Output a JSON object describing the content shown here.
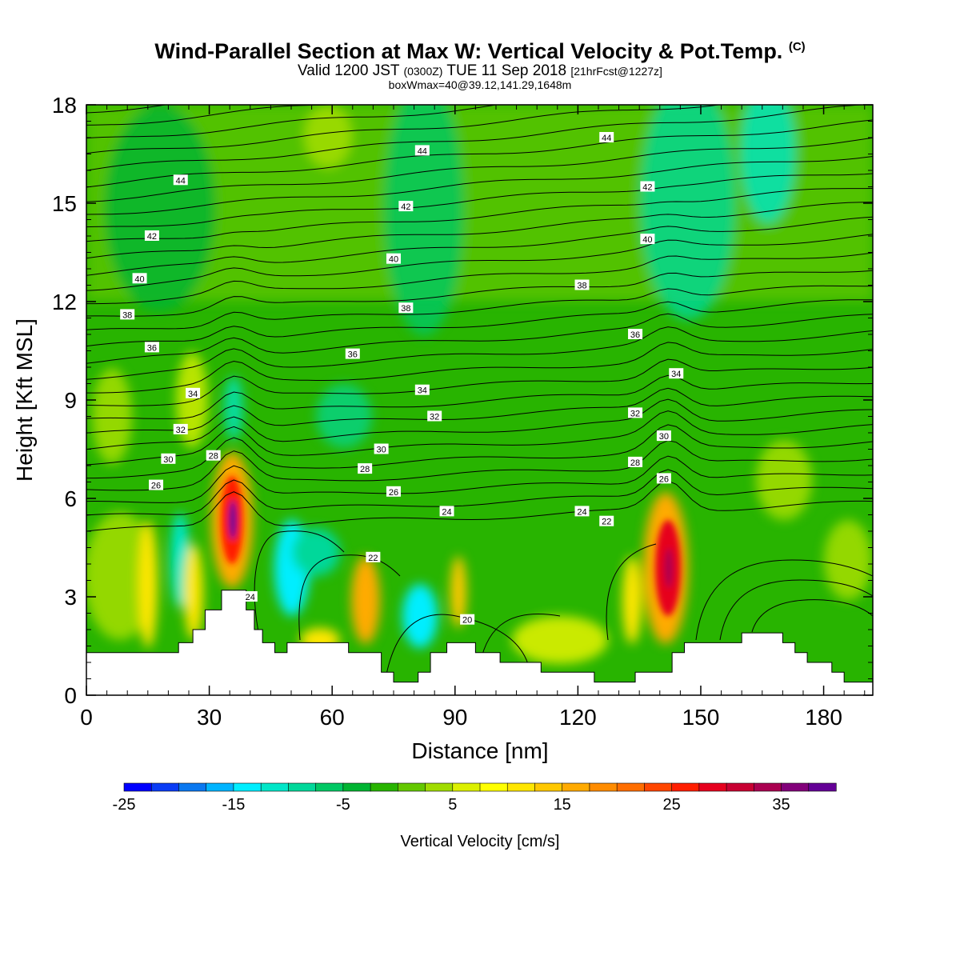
{
  "header": {
    "title": "Wind-Parallel Section at Max W: Vertical Velocity & Pot.Temp.",
    "copyright": "(C)",
    "subtitle_main": "Valid 1200 JST",
    "subtitle_utc": "(0300Z)",
    "subtitle_date": "TUE 11 Sep 2018",
    "subtitle_fcst": "[21hrFcst@1227z]",
    "subtitle2": "boxWmax=40@39.12,141.29,1648m"
  },
  "chart_data": {
    "type": "heatmap",
    "xlabel": "Distance [nm]",
    "ylabel": "Height [Kft MSL]",
    "xlim": [
      0,
      192
    ],
    "ylim": [
      0,
      18
    ],
    "x_ticks": [
      0,
      30,
      60,
      90,
      120,
      150,
      180
    ],
    "x_tick_labels": [
      "0",
      "30",
      "60",
      "90",
      "120",
      "150",
      "180"
    ],
    "y_ticks": [
      0,
      3,
      6,
      9,
      12,
      15,
      18
    ],
    "y_tick_labels": [
      "0",
      "3",
      "6",
      "9",
      "12",
      "15",
      "18"
    ],
    "colorbar": {
      "label": "Vertical Velocity [cm/s]",
      "min": -25,
      "max": 40,
      "step": 2.5,
      "tick_values": [
        -25,
        -15,
        -5,
        5,
        15,
        25,
        35
      ],
      "tick_labels": [
        "-25",
        "-15",
        "-5",
        "5",
        "15",
        "25",
        "35"
      ],
      "colors": [
        "#0000ff",
        "#0a3cf5",
        "#0a78f0",
        "#00b4ff",
        "#00eeff",
        "#00e6c8",
        "#00d89a",
        "#00c864",
        "#00b432",
        "#28b400",
        "#64c800",
        "#a0dc00",
        "#dcf000",
        "#ffff00",
        "#ffe600",
        "#ffc800",
        "#ffaa00",
        "#ff8c00",
        "#ff6e00",
        "#ff4600",
        "#ff1e00",
        "#e6001e",
        "#c80032",
        "#aa0050",
        "#82007a",
        "#640096"
      ]
    },
    "terrain": [
      [
        0,
        1.3
      ],
      [
        22.5,
        1.3
      ],
      [
        22.5,
        1.6
      ],
      [
        26,
        1.6
      ],
      [
        26,
        2
      ],
      [
        29,
        2
      ],
      [
        29,
        2.6
      ],
      [
        33,
        2.6
      ],
      [
        33,
        3.2
      ],
      [
        39,
        3.2
      ],
      [
        39,
        2.6
      ],
      [
        41,
        2.6
      ],
      [
        41,
        2
      ],
      [
        43,
        2
      ],
      [
        43,
        1.6
      ],
      [
        46,
        1.6
      ],
      [
        46,
        1.3
      ],
      [
        49,
        1.3
      ],
      [
        49,
        1.6
      ],
      [
        64,
        1.6
      ],
      [
        64,
        1.3
      ],
      [
        72,
        1.3
      ],
      [
        72,
        0.7
      ],
      [
        75,
        0.7
      ],
      [
        75,
        0.4
      ],
      [
        81,
        0.4
      ],
      [
        81,
        0.7
      ],
      [
        84,
        0.7
      ],
      [
        84,
        1.3
      ],
      [
        88,
        1.3
      ],
      [
        88,
        1.6
      ],
      [
        95,
        1.6
      ],
      [
        95,
        1.3
      ],
      [
        101,
        1.3
      ],
      [
        101,
        1
      ],
      [
        111,
        1
      ],
      [
        111,
        0.7
      ],
      [
        124,
        0.7
      ],
      [
        124,
        0.4
      ],
      [
        134,
        0.4
      ],
      [
        134,
        0.7
      ],
      [
        143,
        0.7
      ],
      [
        143,
        1.3
      ],
      [
        146,
        1.3
      ],
      [
        146,
        1.6
      ],
      [
        160,
        1.6
      ],
      [
        160,
        1.9
      ],
      [
        170,
        1.9
      ],
      [
        170,
        1.6
      ],
      [
        173,
        1.6
      ],
      [
        173,
        1.3
      ],
      [
        176,
        1.3
      ],
      [
        176,
        1
      ],
      [
        182,
        1
      ],
      [
        182,
        0.7
      ],
      [
        185,
        0.7
      ],
      [
        185,
        0.4
      ],
      [
        192,
        0.4
      ]
    ],
    "theta_contour_labels": [
      {
        "text": "44",
        "x": 23,
        "y": 15.7
      },
      {
        "text": "42",
        "x": 16,
        "y": 14.0
      },
      {
        "text": "40",
        "x": 13,
        "y": 12.7
      },
      {
        "text": "38",
        "x": 10,
        "y": 11.6
      },
      {
        "text": "36",
        "x": 16,
        "y": 10.6
      },
      {
        "text": "34",
        "x": 26,
        "y": 9.2
      },
      {
        "text": "32",
        "x": 23,
        "y": 8.1
      },
      {
        "text": "30",
        "x": 20,
        "y": 7.2
      },
      {
        "text": "28",
        "x": 31,
        "y": 7.3
      },
      {
        "text": "26",
        "x": 17,
        "y": 6.4
      },
      {
        "text": "44",
        "x": 82,
        "y": 16.6
      },
      {
        "text": "42",
        "x": 78,
        "y": 14.9
      },
      {
        "text": "40",
        "x": 75,
        "y": 13.3
      },
      {
        "text": "38",
        "x": 78,
        "y": 11.8
      },
      {
        "text": "36",
        "x": 65,
        "y": 10.4
      },
      {
        "text": "34",
        "x": 82,
        "y": 9.3
      },
      {
        "text": "32",
        "x": 85,
        "y": 8.5
      },
      {
        "text": "30",
        "x": 72,
        "y": 7.5
      },
      {
        "text": "28",
        "x": 68,
        "y": 6.9
      },
      {
        "text": "26",
        "x": 75,
        "y": 6.2
      },
      {
        "text": "24",
        "x": 88,
        "y": 5.6
      },
      {
        "text": "22",
        "x": 70,
        "y": 4.2
      },
      {
        "text": "24",
        "x": 40,
        "y": 3.0
      },
      {
        "text": "20",
        "x": 93,
        "y": 2.3
      },
      {
        "text": "44",
        "x": 127,
        "y": 17.0
      },
      {
        "text": "42",
        "x": 137,
        "y": 15.5
      },
      {
        "text": "40",
        "x": 137,
        "y": 13.9
      },
      {
        "text": "38",
        "x": 121,
        "y": 12.5
      },
      {
        "text": "36",
        "x": 134,
        "y": 11.0
      },
      {
        "text": "34",
        "x": 144,
        "y": 9.8
      },
      {
        "text": "32",
        "x": 134,
        "y": 8.6
      },
      {
        "text": "30",
        "x": 141,
        "y": 7.9
      },
      {
        "text": "28",
        "x": 134,
        "y": 7.1
      },
      {
        "text": "26",
        "x": 141,
        "y": 6.6
      },
      {
        "text": "24",
        "x": 121,
        "y": 5.6
      },
      {
        "text": "22",
        "x": 127,
        "y": 5.3
      }
    ]
  }
}
